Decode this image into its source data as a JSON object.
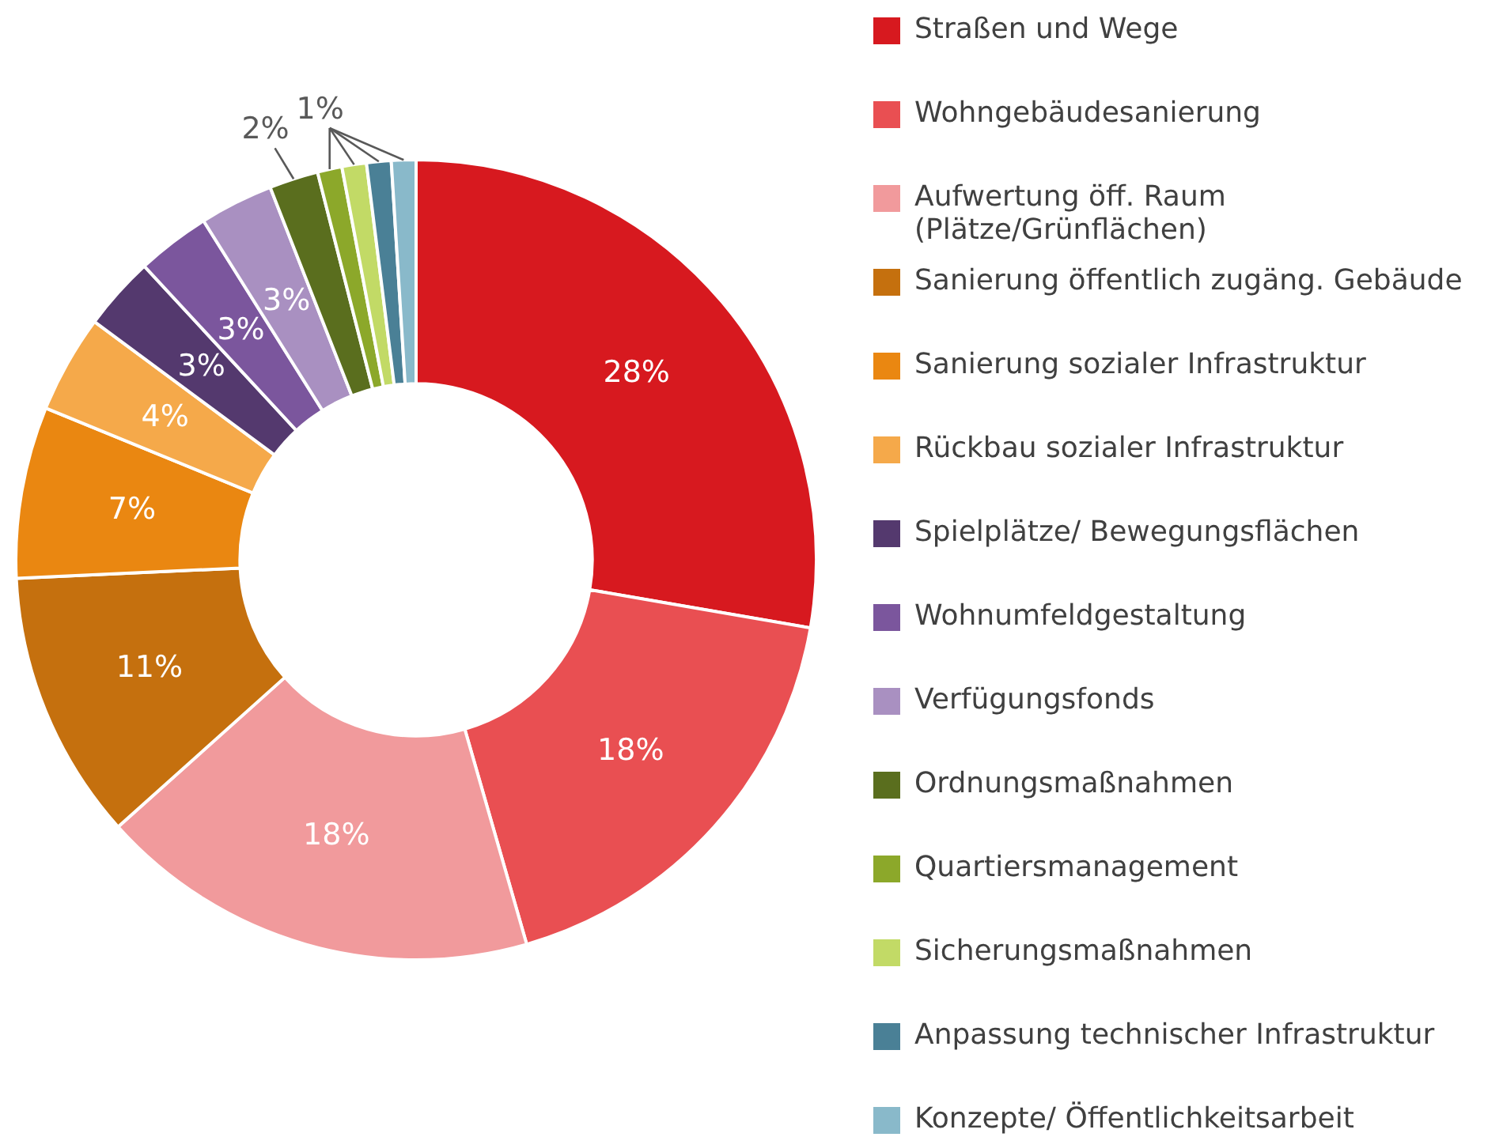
{
  "chart_data": {
    "type": "donut",
    "categories": [
      "Straßen und Wege",
      "Wohngebäudesanierung",
      "Aufwertung öff. Raum (Plätze/Grünflächen)",
      "Sanierung öffentlich zugäng. Gebäude",
      "Sanierung sozialer Infrastruktur",
      "Rückbau sozialer Infrastruktur",
      "Spielplätze/ Bewegungsflächen",
      "Wohnumfeldgestaltung",
      "Verfügungsfonds",
      "Ordnungsmaßnahmen",
      "Quartiersmanagement",
      "Sicherungsmaßnahmen",
      "Anpassung technischer Infrastruktur",
      "Konzepte/ Öffentlichkeitsarbeit"
    ],
    "values": [
      28,
      18,
      18,
      11,
      7,
      4,
      3,
      3,
      3,
      2,
      1,
      1,
      1,
      1
    ],
    "colors": [
      "#d7191f",
      "#e94f52",
      "#f19a9c",
      "#c5700e",
      "#ea8711",
      "#f5a94a",
      "#54396e",
      "#7b569d",
      "#a990c1",
      "#5a6e1e",
      "#8ca82a",
      "#c2da66",
      "#4a8096",
      "#89b9ca"
    ],
    "value_labels": [
      "28%",
      "18%",
      "18%",
      "11%",
      "7%",
      "4%",
      "3%",
      "3%",
      "3%",
      "2%",
      "1%",
      null,
      null,
      null
    ],
    "legend": "right"
  }
}
